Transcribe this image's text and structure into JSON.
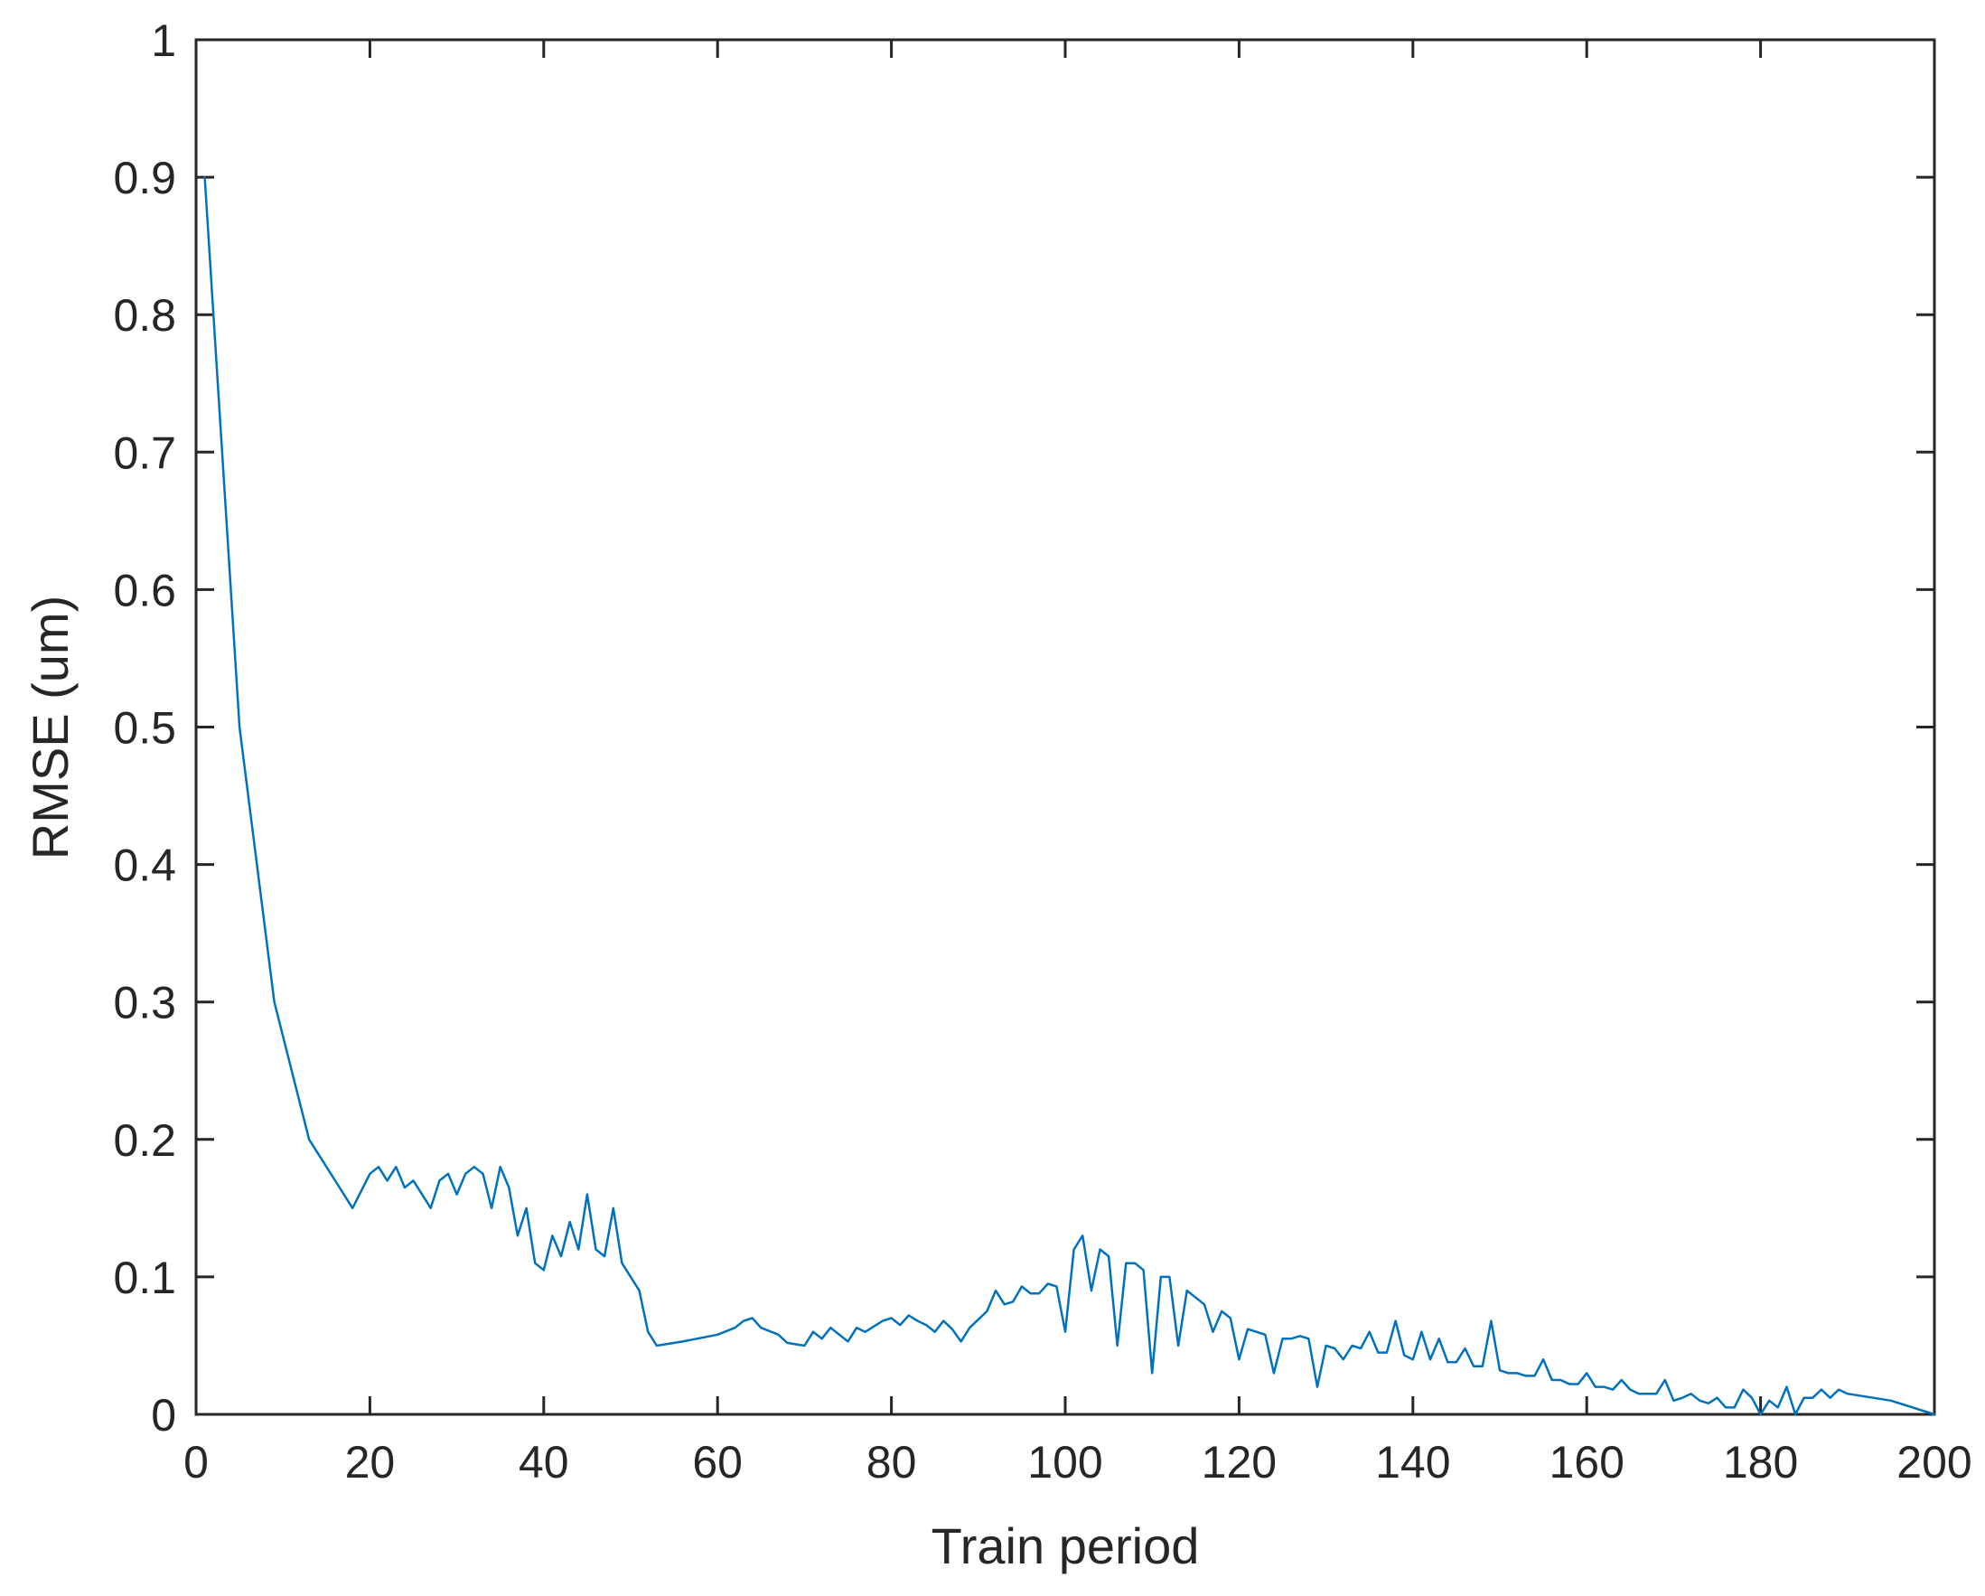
{
  "chart_data": {
    "type": "line",
    "title": "",
    "xlabel": "Train period",
    "ylabel": "RMSE (um)",
    "xlim": [
      0,
      200
    ],
    "ylim": [
      0,
      1
    ],
    "grid": false,
    "line_color": "#0072BD",
    "axis_color": "#262626",
    "xticks": [
      "0",
      "20",
      "40",
      "60",
      "80",
      "100",
      "120",
      "140",
      "160",
      "180",
      "200"
    ],
    "yticks": [
      "0",
      "0.1",
      "0.2",
      "0.3",
      "0.4",
      "0.5",
      "0.6",
      "0.7",
      "0.8",
      "0.9",
      "1"
    ],
    "series": [
      {
        "x": [
          1,
          5,
          9,
          13,
          18,
          20,
          21,
          22,
          23,
          24,
          25,
          26,
          27,
          28,
          29,
          30,
          31,
          32,
          33,
          34,
          35,
          36,
          37,
          38,
          39,
          40,
          41,
          42,
          43,
          44,
          45,
          46,
          47,
          48,
          49,
          50,
          51,
          52,
          53,
          56,
          60,
          62,
          63,
          64,
          65,
          67,
          68,
          70,
          71,
          72,
          73,
          75,
          76,
          77,
          79,
          80,
          81,
          82,
          83,
          84,
          85,
          86,
          87,
          88,
          89,
          91,
          92,
          93,
          94,
          95,
          96,
          97,
          98,
          99,
          100,
          101,
          102,
          103,
          104,
          105,
          106,
          107,
          108,
          109,
          110,
          111,
          112,
          113,
          114,
          115,
          116,
          117,
          118,
          119,
          120,
          121,
          122,
          123,
          124,
          125,
          126,
          127,
          128,
          129,
          130,
          131,
          132,
          133,
          134,
          135,
          136,
          137,
          138,
          139,
          140,
          141,
          142,
          143,
          144,
          145,
          146,
          147,
          148,
          149,
          150,
          151,
          152,
          153,
          154,
          155,
          156,
          157,
          158,
          159,
          160,
          161,
          162,
          163,
          164,
          165,
          166,
          167,
          168,
          169,
          170,
          171,
          172,
          173,
          174,
          175,
          176,
          177,
          178,
          179,
          180,
          181,
          182,
          183,
          184,
          185,
          186,
          187,
          188,
          189,
          190,
          195,
          200
        ],
        "values": [
          0.9,
          0.5,
          0.3,
          0.2,
          0.15,
          0.175,
          0.18,
          0.17,
          0.18,
          0.165,
          0.17,
          0.16,
          0.15,
          0.17,
          0.175,
          0.16,
          0.175,
          0.18,
          0.175,
          0.15,
          0.18,
          0.165,
          0.13,
          0.15,
          0.11,
          0.105,
          0.13,
          0.115,
          0.14,
          0.12,
          0.16,
          0.12,
          0.115,
          0.15,
          0.11,
          0.1,
          0.09,
          0.06,
          0.05,
          0.053,
          0.058,
          0.063,
          0.068,
          0.07,
          0.063,
          0.058,
          0.052,
          0.05,
          0.06,
          0.055,
          0.063,
          0.053,
          0.063,
          0.06,
          0.068,
          0.07,
          0.065,
          0.072,
          0.068,
          0.065,
          0.06,
          0.068,
          0.062,
          0.053,
          0.063,
          0.075,
          0.09,
          0.08,
          0.082,
          0.093,
          0.088,
          0.088,
          0.095,
          0.093,
          0.06,
          0.12,
          0.13,
          0.09,
          0.12,
          0.115,
          0.05,
          0.11,
          0.11,
          0.105,
          0.03,
          0.1,
          0.1,
          0.05,
          0.09,
          0.085,
          0.08,
          0.06,
          0.075,
          0.07,
          0.04,
          0.062,
          0.06,
          0.058,
          0.03,
          0.055,
          0.055,
          0.057,
          0.055,
          0.02,
          0.05,
          0.048,
          0.04,
          0.05,
          0.048,
          0.06,
          0.045,
          0.045,
          0.068,
          0.043,
          0.04,
          0.06,
          0.04,
          0.055,
          0.038,
          0.038,
          0.048,
          0.035,
          0.035,
          0.068,
          0.032,
          0.03,
          0.03,
          0.028,
          0.028,
          0.04,
          0.025,
          0.025,
          0.022,
          0.022,
          0.03,
          0.02,
          0.02,
          0.018,
          0.025,
          0.018,
          0.015,
          0.015,
          0.015,
          0.025,
          0.01,
          0.012,
          0.015,
          0.01,
          0.008,
          0.012,
          0.005,
          0.005,
          0.018,
          0.012,
          0.0,
          0.01,
          0.005,
          0.02,
          0.0,
          0.012,
          0.012,
          0.018,
          0.012,
          0.018,
          0.015,
          0.01,
          0.0
        ]
      }
    ]
  }
}
